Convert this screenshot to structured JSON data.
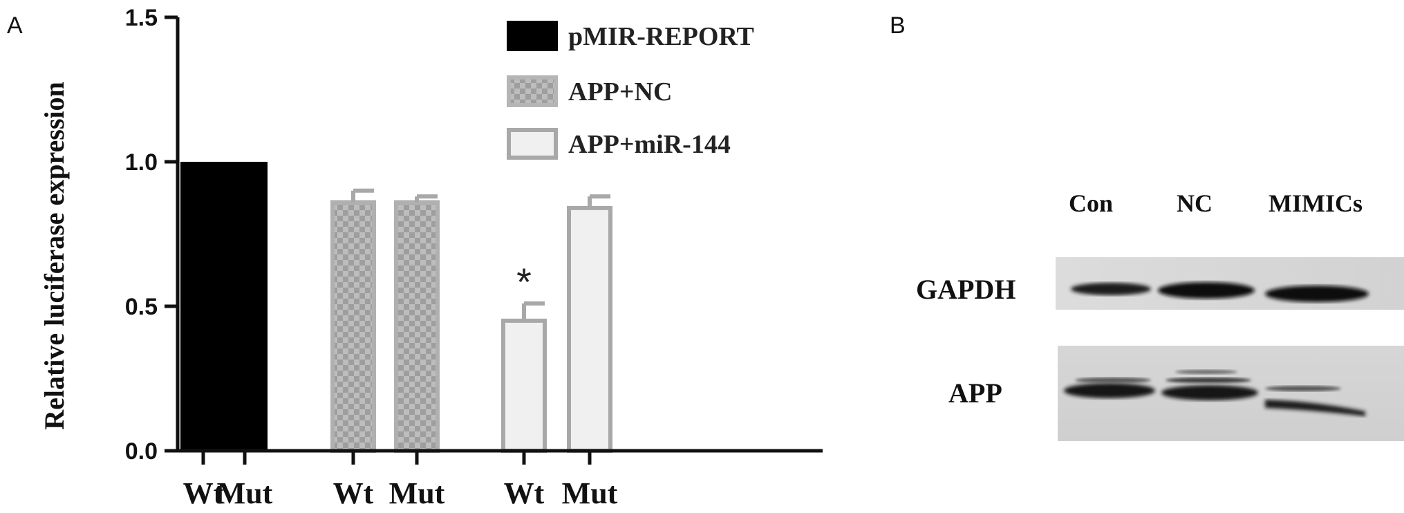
{
  "panels": {
    "a": "A",
    "b": "B"
  },
  "chart_data": {
    "type": "bar",
    "ylabel": "Relative luciferase expression",
    "ylim": [
      0,
      1.5
    ],
    "yticks": [
      0.0,
      0.5,
      1.0,
      1.5
    ],
    "ytick_labels": [
      "0.0",
      "0.5",
      "1.0",
      "1.5"
    ],
    "categories": [
      "Wt",
      "Mut",
      "Wt",
      "Mut",
      "Wt",
      "Mut"
    ],
    "bars": [
      {
        "group": "pMIR-REPORT",
        "category": "Wt",
        "value": 1.0,
        "error": 0
      },
      {
        "group": "pMIR-REPORT",
        "category": "Mut",
        "value": 1.0,
        "error": 0
      },
      {
        "group": "APP+NC",
        "category": "Wt",
        "value": 0.86,
        "error": 0.04
      },
      {
        "group": "APP+NC",
        "category": "Mut",
        "value": 0.86,
        "error": 0.02
      },
      {
        "group": "APP+miR-144",
        "category": "Wt",
        "value": 0.45,
        "error": 0.06,
        "annotation": "*"
      },
      {
        "group": "APP+miR-144",
        "category": "Mut",
        "value": 0.84,
        "error": 0.04
      }
    ],
    "series": [
      {
        "name": "pMIR-REPORT",
        "color": "#000000",
        "pattern": "solid"
      },
      {
        "name": "APP+NC",
        "color": "#a8a8a8",
        "pattern": "checker"
      },
      {
        "name": "APP+miR-144",
        "color": "#f0f0f0",
        "pattern": "outline"
      }
    ],
    "legend_position": "top-right"
  },
  "blot": {
    "lanes": [
      "Con",
      "NC",
      "MIMICs"
    ],
    "rows": [
      "GAPDH",
      "APP"
    ]
  }
}
